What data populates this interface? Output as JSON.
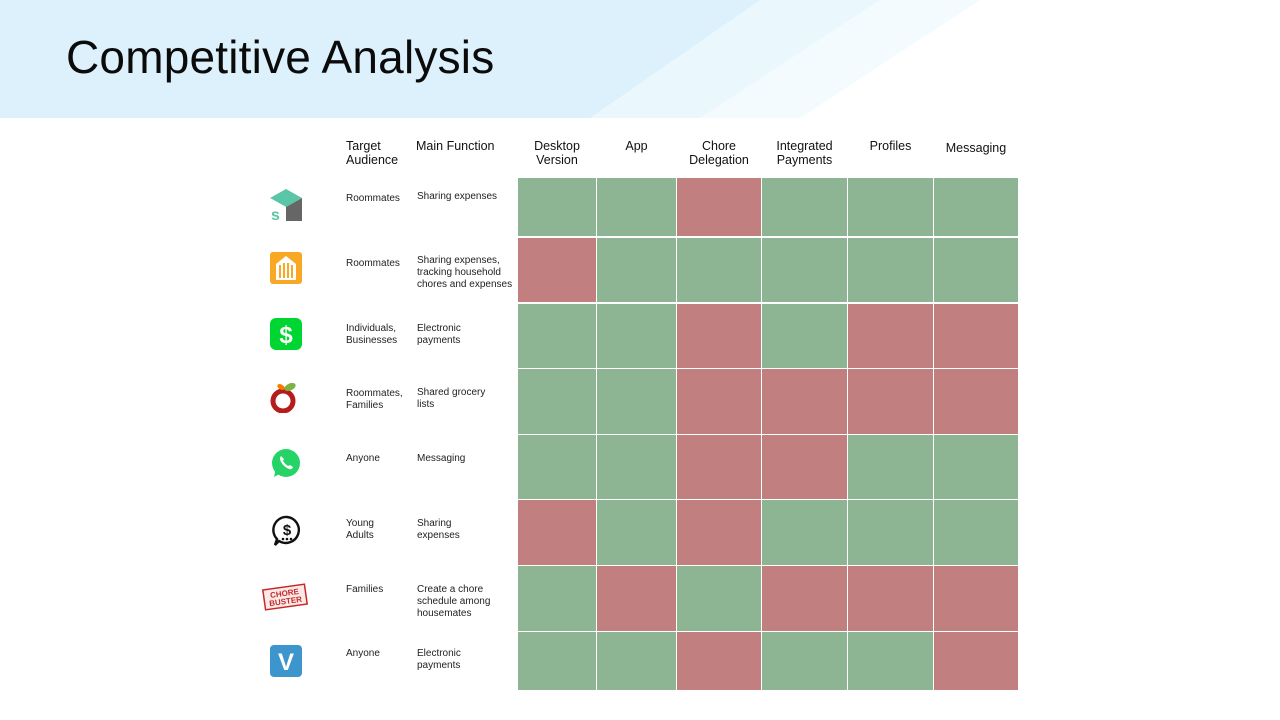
{
  "title": "Competitive Analysis",
  "colors": {
    "yes": "#8db594",
    "no": "#c17f7f",
    "banner": "#dcf1fb"
  },
  "headers": {
    "target": "Target Audience",
    "function": "Main Function",
    "features": [
      "Desktop Version",
      "App",
      "Chore Delegation",
      "Integrated Payments",
      "Profiles",
      "Messaging"
    ]
  },
  "rows": [
    {
      "logo": "splitwise-icon",
      "target": "Roommates",
      "function": "Sharing expenses",
      "features": [
        true,
        true,
        false,
        true,
        true,
        true
      ]
    },
    {
      "logo": "flatastic-icon",
      "target": "Roommates",
      "function": "Sharing expenses, tracking household chores and expenses",
      "features": [
        false,
        true,
        true,
        true,
        true,
        true
      ]
    },
    {
      "logo": "cash-app-icon",
      "target": "Individuals, Businesses",
      "function": "Electronic payments",
      "features": [
        true,
        true,
        false,
        true,
        false,
        false
      ]
    },
    {
      "logo": "ourgroceries-icon",
      "target": "Roommates, Families",
      "function": "Shared grocery lists",
      "features": [
        true,
        true,
        false,
        false,
        false,
        false
      ]
    },
    {
      "logo": "whatsapp-icon",
      "target": "Anyone",
      "function": "Messaging",
      "features": [
        true,
        true,
        false,
        false,
        true,
        true
      ]
    },
    {
      "logo": "dollar-chat-icon",
      "target": "Young Adults",
      "function": "Sharing expenses",
      "features": [
        false,
        true,
        false,
        true,
        true,
        true
      ]
    },
    {
      "logo": "chorebuster-icon",
      "target": "Families",
      "function": "Create a chore schedule among housemates",
      "features": [
        true,
        false,
        true,
        false,
        false,
        false
      ]
    },
    {
      "logo": "venmo-icon",
      "target": "Anyone",
      "function": "Electronic payments",
      "features": [
        true,
        true,
        false,
        true,
        true,
        false
      ]
    }
  ],
  "logo_text": {
    "chorebuster": "CHORE BUSTER"
  }
}
